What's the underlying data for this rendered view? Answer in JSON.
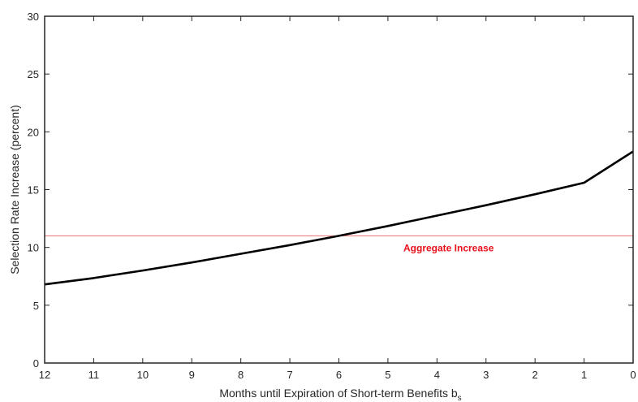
{
  "chart_data": {
    "type": "line",
    "title": "",
    "xlabel": "Months until Expiration of Short-term Benefits b",
    "xlabel_subscript": "s",
    "ylabel": "Selection Rate Increase (percent)",
    "xlim": [
      12,
      0
    ],
    "ylim": [
      0,
      30
    ],
    "x_reversed": true,
    "xticks": [
      12,
      11,
      10,
      9,
      8,
      7,
      6,
      5,
      4,
      3,
      2,
      1,
      0
    ],
    "yticks": [
      0,
      5,
      10,
      15,
      20,
      25,
      30
    ],
    "grid": false,
    "series": [
      {
        "color": "#000000",
        "x": [
          12,
          11,
          10,
          9,
          8,
          7,
          6,
          5,
          4,
          3,
          2,
          1,
          0
        ],
        "y": [
          6.8,
          7.35,
          8.0,
          8.7,
          9.45,
          10.2,
          11.0,
          11.85,
          12.75,
          13.65,
          14.6,
          15.6,
          18.3
        ]
      }
    ],
    "reference_line": {
      "y": 11.0,
      "color": "#f08080",
      "label": "Aggregate Increase",
      "label_color": "#e8101a"
    }
  }
}
